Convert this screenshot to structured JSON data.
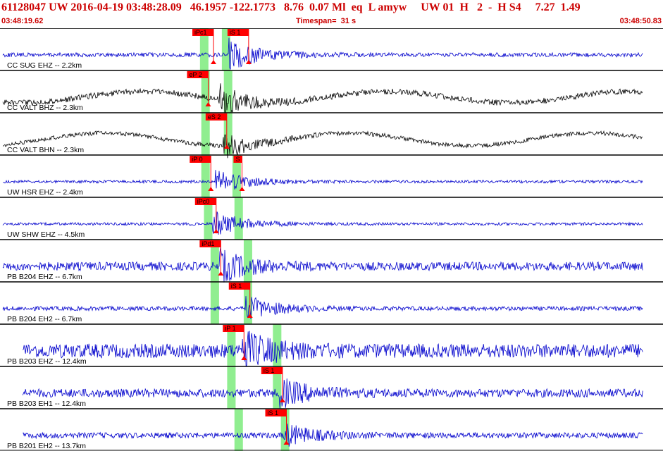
{
  "header": {
    "event_line": "61128047 UW 2016-04-19 03:48:28.09   46.1957 -122.1773   8.76  0.07 Ml  eq  L amyw     UW 01  H   2  -  H S4     7.27  1.49",
    "start_time": "03:48:19.62",
    "timespan": "Timespan=  31 s",
    "end_time": "03:48:50.83"
  },
  "colors": {
    "header_text": "#cc0000",
    "trace_blue": "#0000cc",
    "trace_black": "#000000",
    "pick_red": "#ff0000",
    "window_green": "#90ee90"
  },
  "traces": [
    {
      "label": "CC SUG EHZ -- 2.2km",
      "color": "blue",
      "amp": 3,
      "noise_start": 0.0,
      "onset": 0.345,
      "arrival_amp": 22,
      "longwave": 0,
      "picks": [
        {
          "label": "iPc1",
          "t": 0.322
        },
        {
          "label": "iS 1",
          "t": 0.375
        }
      ],
      "windows": [
        0.308,
        0.341
      ]
    },
    {
      "label": "CC VALT BHZ -- 2.3km",
      "color": "black",
      "amp": 4,
      "noise_start": 0.0,
      "onset": 0.33,
      "arrival_amp": 20,
      "longwave": 8,
      "picks": [
        {
          "label": "eP 2",
          "t": 0.314
        }
      ],
      "windows": [
        0.31,
        0.344
      ]
    },
    {
      "label": "CC VALT BHN -- 2.3km",
      "color": "black",
      "amp": 3,
      "noise_start": 0.0,
      "onset": 0.335,
      "arrival_amp": 18,
      "longwave": 9,
      "picks": [
        {
          "label": "eS 2",
          "t": 0.342
        }
      ],
      "windows": [
        0.31,
        0.344
      ]
    },
    {
      "label": "UW HSR EHZ -- 2.4km",
      "color": "blue",
      "amp": 2,
      "noise_start": 0.0,
      "onset": 0.325,
      "arrival_amp": 18,
      "longwave": 0,
      "picks": [
        {
          "label": "iP 0",
          "t": 0.318
        },
        {
          "label": "S",
          "t": 0.365
        }
      ],
      "windows": [
        0.31,
        0.357
      ]
    },
    {
      "label": "UW SHW EHZ -- 4.5km",
      "color": "blue",
      "amp": 2,
      "noise_start": 0.0,
      "onset": 0.32,
      "arrival_amp": 20,
      "longwave": 0,
      "picks": [
        {
          "label": "iPc0",
          "t": 0.326
        }
      ],
      "windows": [
        0.314,
        0.36
      ]
    },
    {
      "label": "PB B204 EHZ -- 6.7km",
      "color": "blue",
      "amp": 6,
      "noise_start": 0.0,
      "onset": 0.33,
      "arrival_amp": 22,
      "longwave": 0,
      "picks": [
        {
          "label": "iPd1",
          "t": 0.333
        }
      ],
      "windows": [
        0.324,
        0.374
      ]
    },
    {
      "label": "PB B204 EH2 -- 6.7km",
      "color": "blue",
      "amp": 3,
      "noise_start": 0.0,
      "onset": 0.37,
      "arrival_amp": 18,
      "longwave": 0,
      "picks": [
        {
          "label": "iS 1",
          "t": 0.377
        }
      ],
      "windows": [
        0.324,
        0.374
      ]
    },
    {
      "label": "PB B203 EHZ -- 12.4km",
      "color": "blue",
      "amp": 10,
      "noise_start": 0.03,
      "onset": 0.365,
      "arrival_amp": 24,
      "longwave": 0,
      "picks": [
        {
          "label": "iP 1",
          "t": 0.368
        }
      ],
      "windows": [
        0.349,
        0.418
      ]
    },
    {
      "label": "PB B203 EH1 -- 12.4km",
      "color": "blue",
      "amp": 6,
      "noise_start": 0.03,
      "onset": 0.42,
      "arrival_amp": 20,
      "longwave": 0,
      "picks": [
        {
          "label": "iS 1",
          "t": 0.426
        }
      ],
      "windows": [
        0.349,
        0.418
      ]
    },
    {
      "label": "PB B201 EH2 -- 13.7km",
      "color": "blue",
      "amp": 4,
      "noise_start": 0.03,
      "onset": 0.428,
      "arrival_amp": 16,
      "longwave": 0,
      "picks": [
        {
          "label": "iS 1",
          "t": 0.432
        }
      ],
      "windows": [
        0.36,
        0.43
      ]
    }
  ]
}
